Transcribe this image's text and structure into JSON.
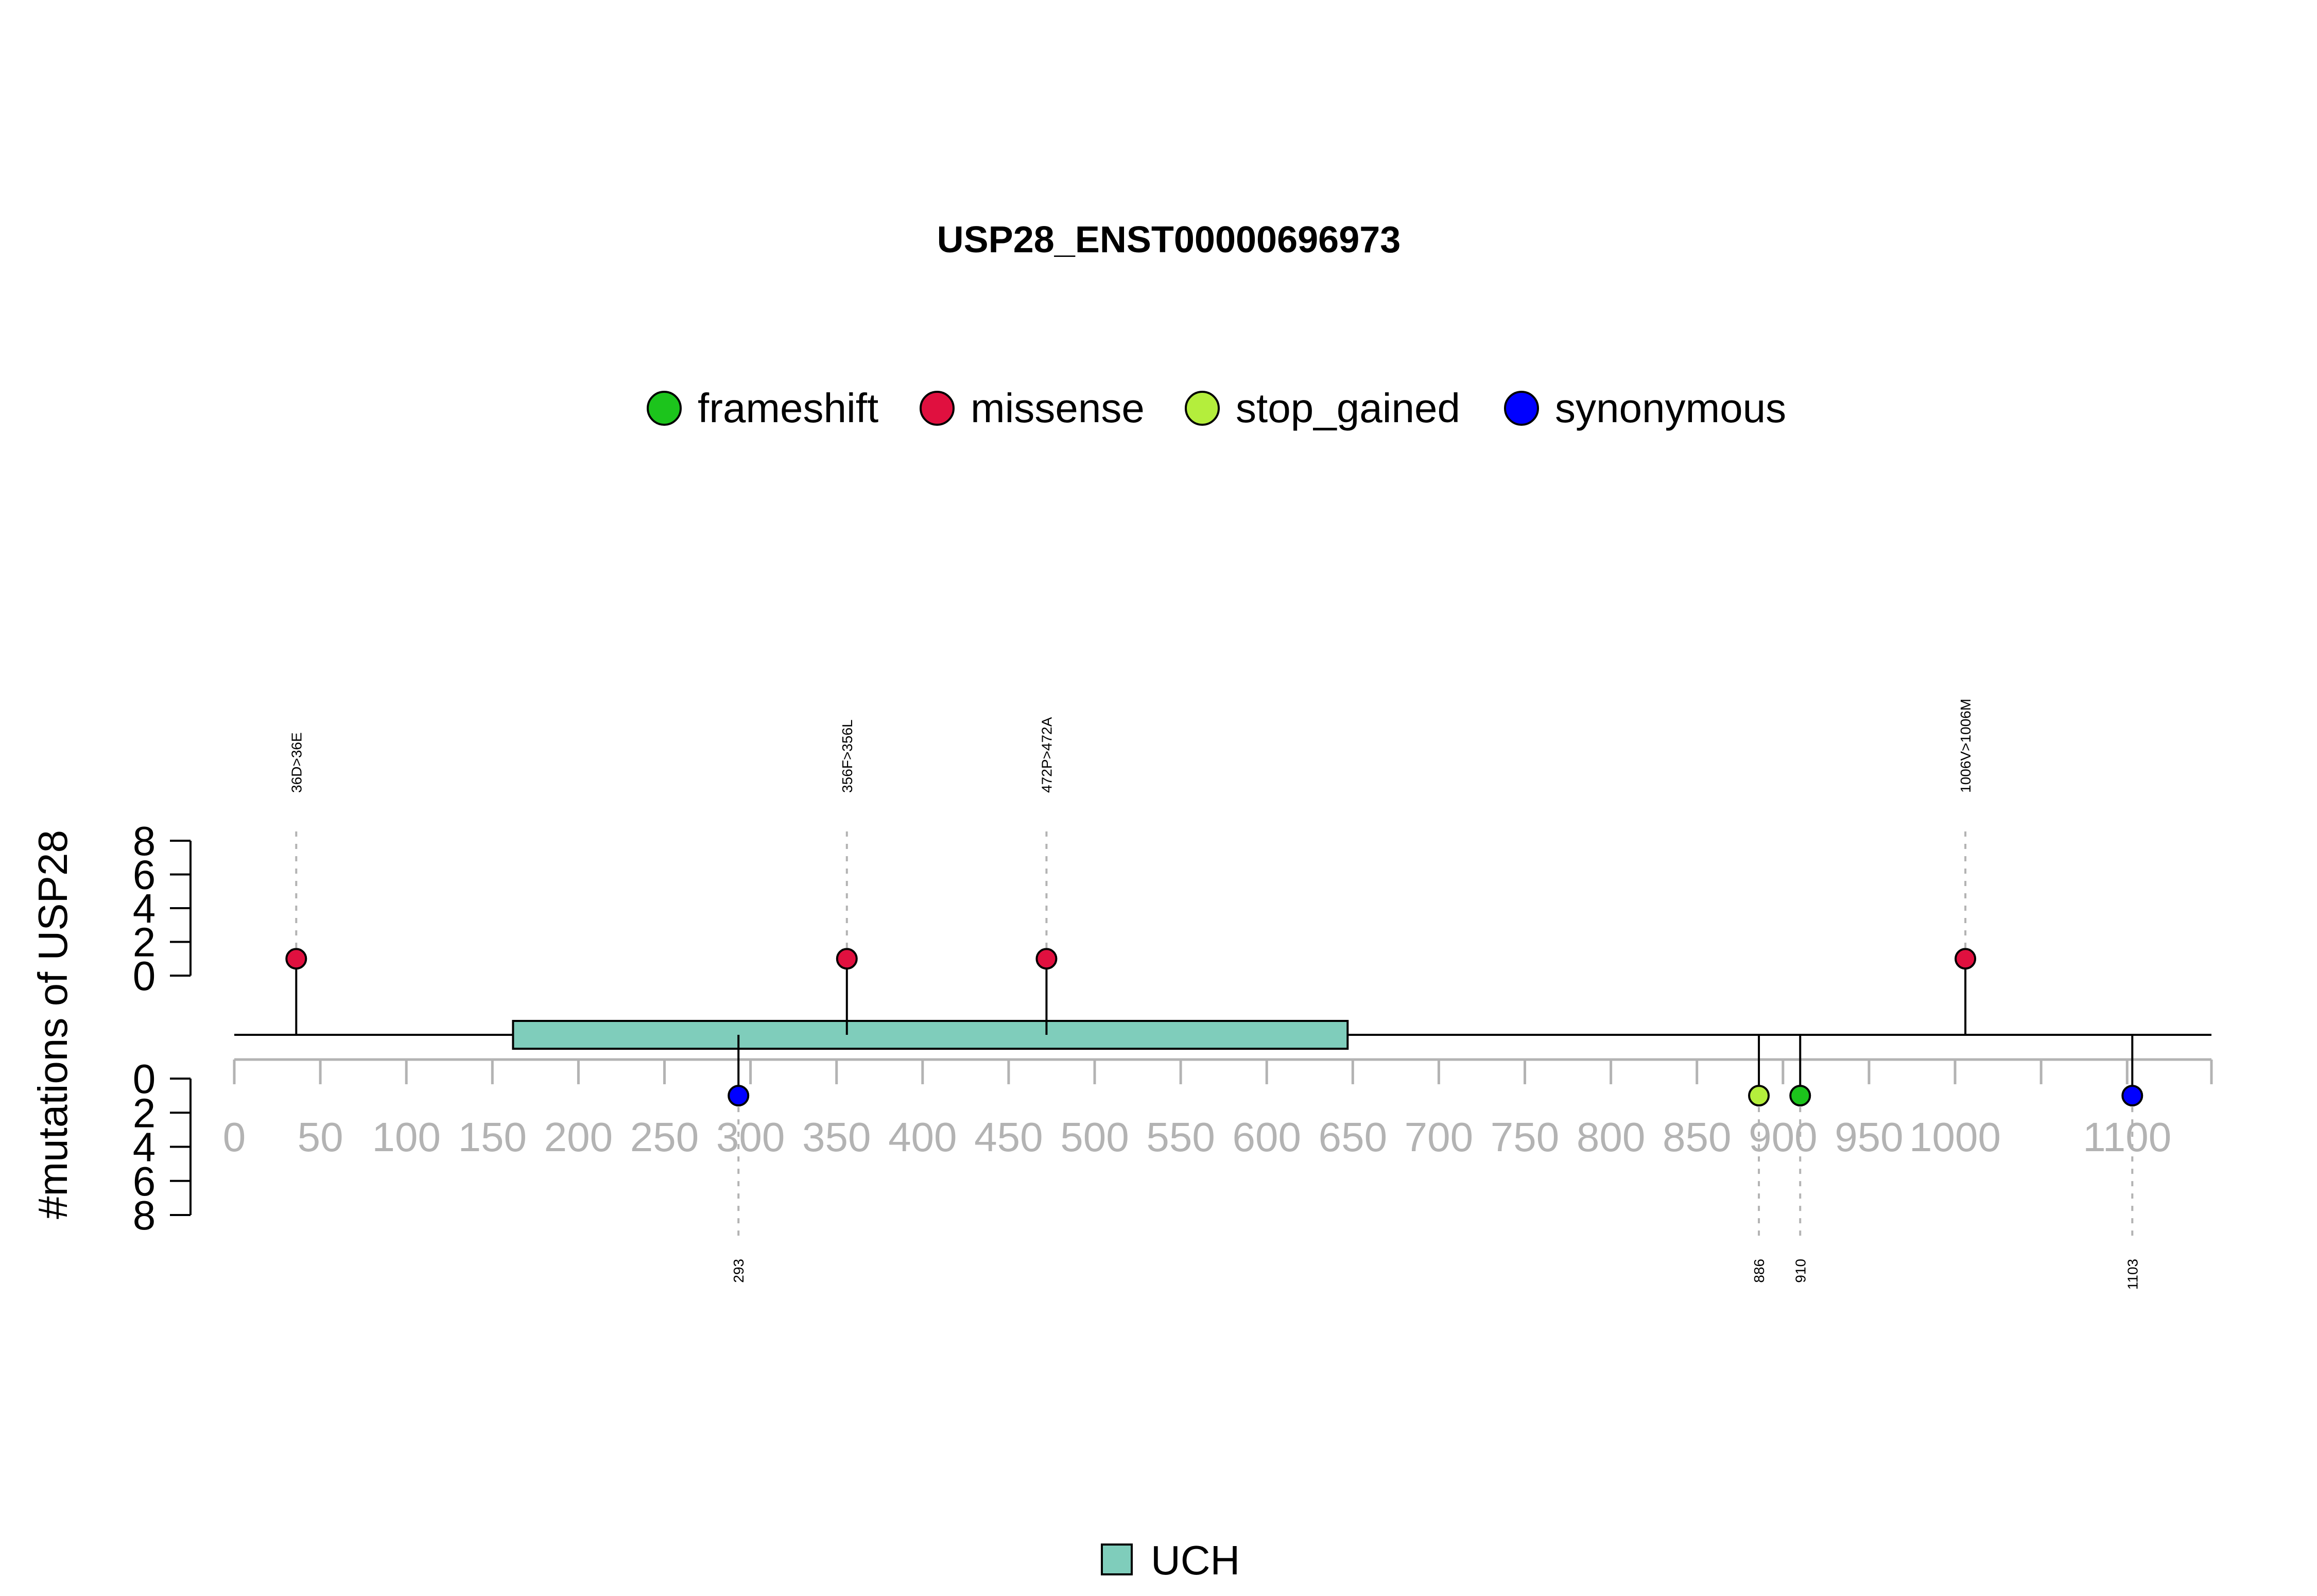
{
  "chart_data": {
    "type": "lollipop",
    "title": "USP28_ENST00000696973",
    "ylabel": "#mutations of USP28",
    "xlim": [
      0,
      1149
    ],
    "x_ticks": [
      0,
      50,
      100,
      150,
      200,
      250,
      300,
      350,
      400,
      450,
      500,
      550,
      600,
      650,
      700,
      750,
      800,
      850,
      900,
      950,
      1000,
      1100
    ],
    "x_minor_ticks": [
      0,
      50,
      100,
      150,
      200,
      250,
      300,
      350,
      400,
      450,
      500,
      550,
      600,
      650,
      700,
      750,
      800,
      850,
      900,
      950,
      1000,
      1050,
      1100,
      1149
    ],
    "y_ticks": [
      0,
      2,
      4,
      6,
      8
    ],
    "ylim": [
      0,
      8
    ],
    "legend": [
      {
        "name": "frameshift",
        "color": "#1CC41C"
      },
      {
        "name": "missense",
        "color": "#E0103F"
      },
      {
        "name": "stop_gained",
        "color": "#B4EE3C"
      },
      {
        "name": "synonymous",
        "color": "#0000FF"
      }
    ],
    "mutations": [
      {
        "position": 36,
        "count": 1,
        "type": "missense",
        "label": "36D>36E",
        "side": "top"
      },
      {
        "position": 356,
        "count": 1,
        "type": "missense",
        "label": "356F>356L",
        "side": "top"
      },
      {
        "position": 472,
        "count": 1,
        "type": "missense",
        "label": "472P>472A",
        "side": "top"
      },
      {
        "position": 1006,
        "count": 1,
        "type": "missense",
        "label": "1006V>1006M",
        "side": "top"
      },
      {
        "position": 293,
        "count": 1,
        "type": "synonymous",
        "label": "293",
        "side": "bottom"
      },
      {
        "position": 886,
        "count": 1,
        "type": "stop_gained",
        "label": "886",
        "side": "bottom"
      },
      {
        "position": 910,
        "count": 1,
        "type": "frameshift",
        "label": "910",
        "side": "bottom"
      },
      {
        "position": 1103,
        "count": 1,
        "type": "synonymous",
        "label": "1103",
        "side": "bottom"
      }
    ],
    "domains": [
      {
        "name": "UCH",
        "start": 162,
        "end": 647,
        "color": "#7FCDBB"
      }
    ]
  }
}
